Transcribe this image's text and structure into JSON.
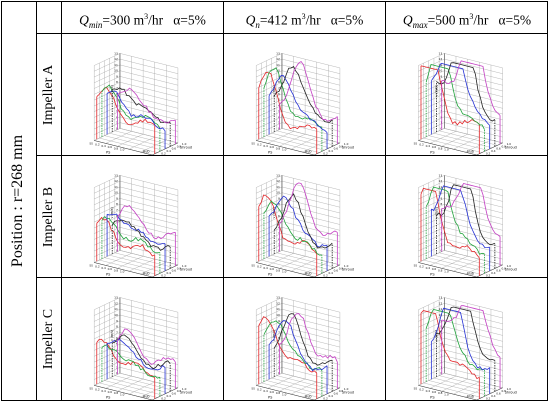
{
  "side_label": "Position : r=268 mm",
  "columns": [
    {
      "q_symbol": "Q",
      "q_sub": "min",
      "q_value": "=300 m",
      "q_unit_sup": "3",
      "q_unit": "/hr",
      "alpha": "α=5%"
    },
    {
      "q_symbol": "Q",
      "q_sub": "n",
      "q_value": "=412 m",
      "q_unit_sup": "3",
      "q_unit": "/hr",
      "alpha": "α=5%"
    },
    {
      "q_symbol": "Q",
      "q_sub": "max",
      "q_value": "=500 m",
      "q_unit_sup": "3",
      "q_unit": "/hr",
      "alpha": "α=5%"
    }
  ],
  "rows": [
    {
      "label": "Impeller A"
    },
    {
      "label": "Impeller B"
    },
    {
      "label": "Impeller C"
    }
  ],
  "plot_labels": {
    "z_axis": "v (m/s)",
    "z_ticks": [
      "0",
      "1",
      "2",
      "3",
      "4",
      "5",
      "6",
      "7",
      "8",
      "9",
      "10",
      "11",
      "12",
      "13"
    ],
    "x_axis": "PS",
    "x_ticks": [
      "SS",
      "0.2",
      "0.4",
      "0.6",
      "0.8",
      "1.0"
    ],
    "y_ticks": [
      "0",
      "0.2",
      "0.4",
      "0.6",
      "0.8",
      "1.0"
    ],
    "hub": "Hub",
    "shroud": "Shroud"
  },
  "series_colors": [
    "#e3262a",
    "#1fa33a",
    "#2430d4",
    "#222222",
    "#c43fc4"
  ]
}
